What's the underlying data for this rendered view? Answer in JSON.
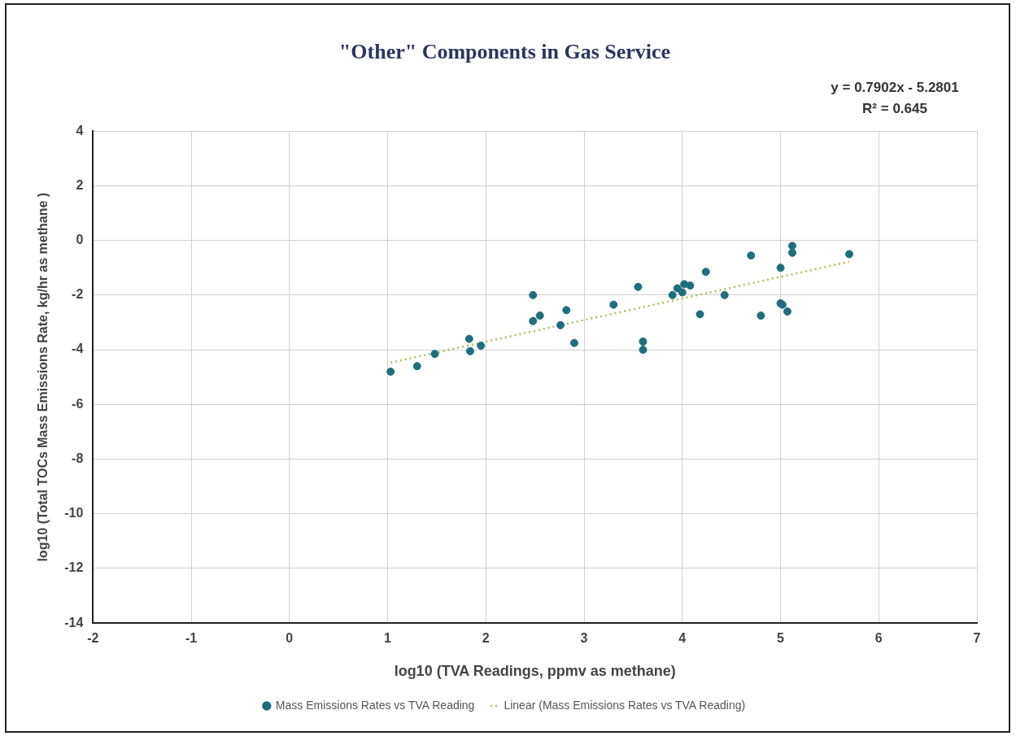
{
  "chart_data": {
    "type": "scatter",
    "title": "\"Other\" Components in Gas Service",
    "xlabel": "log10 (TVA Readings, ppmv as methane)",
    "ylabel": "log10 (Total TOCs Mass Emissions Rate, kg/hr as methane )",
    "annotations": [
      "y = 0.7902x - 5.2801",
      "R² = 0.645"
    ],
    "xlim": [
      -2,
      7
    ],
    "xticks": [
      -2,
      -1,
      0,
      1,
      2,
      3,
      4,
      5,
      6,
      7
    ],
    "ylim": [
      -14,
      4
    ],
    "yticks": [
      -14,
      -12,
      -10,
      -8,
      -6,
      -4,
      -2,
      0,
      2,
      4
    ],
    "grid": true,
    "legend": "bottom",
    "marker": "circle",
    "series": [
      {
        "name": "Mass Emissions Rates vs TVA Reading",
        "color": "#1f6e7e",
        "x": [
          1.03,
          1.3,
          1.48,
          1.83,
          1.84,
          1.95,
          2.48,
          2.48,
          2.55,
          2.76,
          2.82,
          2.9,
          3.3,
          3.55,
          3.6,
          3.6,
          3.9,
          3.95,
          4.0,
          4.02,
          4.08,
          4.18,
          4.24,
          4.43,
          4.7,
          4.8,
          5.0,
          5.0,
          5.02,
          5.07,
          5.12,
          5.12,
          5.7
        ],
        "values": [
          -4.8,
          -4.6,
          -4.15,
          -3.6,
          -4.05,
          -3.85,
          -2.0,
          -2.95,
          -2.75,
          -3.1,
          -2.55,
          -3.75,
          -2.35,
          -1.7,
          -3.7,
          -4.0,
          -2.0,
          -1.75,
          -1.9,
          -1.6,
          -1.65,
          -2.7,
          -1.15,
          -2.0,
          -0.55,
          -2.75,
          -1.0,
          -2.3,
          -2.35,
          -2.6,
          -0.2,
          -0.45,
          -0.5
        ]
      },
      {
        "name": "Linear (Mass Emissions Rates vs TVA Reading)",
        "type": "line",
        "color": "#a9bf5a",
        "line_style": "dotted",
        "marker": "none",
        "x": [
          1.03,
          5.7
        ],
        "values": [
          -4.47,
          -0.78
        ]
      }
    ]
  }
}
